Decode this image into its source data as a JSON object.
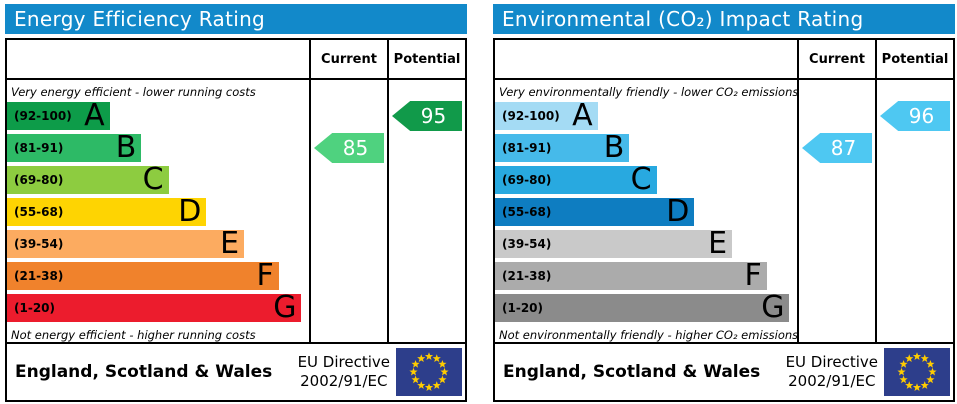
{
  "theme": {
    "header_bar_color": "#1289ca",
    "border_color": "#000000",
    "eu_flag": {
      "background": "#2d3e8b",
      "star_color": "#ffcc00"
    }
  },
  "charts": [
    {
      "title": "Energy Efficiency Rating",
      "columns": {
        "current": "Current",
        "potential": "Potential"
      },
      "caption_top": "Very energy efficient - lower running costs",
      "caption_bottom": "Not energy efficient - higher running costs",
      "bands": [
        {
          "range": "(92-100)",
          "letter": "A",
          "color": "#0d9c49",
          "width_pct": 34
        },
        {
          "range": "(81-91)",
          "letter": "B",
          "color": "#2dba66",
          "width_pct": 44.5
        },
        {
          "range": "(69-80)",
          "letter": "C",
          "color": "#8dcc40",
          "width_pct": 53.5
        },
        {
          "range": "(55-68)",
          "letter": "D",
          "color": "#fed402",
          "width_pct": 66
        },
        {
          "range": "(39-54)",
          "letter": "E",
          "color": "#fcab60",
          "width_pct": 78.5
        },
        {
          "range": "(21-38)",
          "letter": "F",
          "color": "#f0822c",
          "width_pct": 90
        },
        {
          "range": "(1-20)",
          "letter": "G",
          "color": "#ec1c2d",
          "width_pct": 97.5
        }
      ],
      "current": {
        "value": "85",
        "band": "B",
        "band_index": 1,
        "color": "#4fd27f"
      },
      "potential": {
        "value": "95",
        "band": "A",
        "band_index": 0,
        "color": "#119a4a"
      },
      "footer": {
        "region": "England, Scotland & Wales",
        "directive_line1": "EU Directive",
        "directive_line2": "2002/91/EC"
      }
    },
    {
      "title": "Environmental (CO₂) Impact Rating",
      "columns": {
        "current": "Current",
        "potential": "Potential"
      },
      "caption_top": "Very environmentally friendly - lower CO₂ emissions",
      "caption_bottom": "Not environmentally friendly - higher CO₂ emissions",
      "bands": [
        {
          "range": "(92-100)",
          "letter": "A",
          "color": "#a4dbf4",
          "width_pct": 34
        },
        {
          "range": "(81-91)",
          "letter": "B",
          "color": "#46baea",
          "width_pct": 44.5
        },
        {
          "range": "(69-80)",
          "letter": "C",
          "color": "#28a9e0",
          "width_pct": 53.5
        },
        {
          "range": "(55-68)",
          "letter": "D",
          "color": "#0e7dc1",
          "width_pct": 66
        },
        {
          "range": "(39-54)",
          "letter": "E",
          "color": "#c9c9c9",
          "width_pct": 78.5
        },
        {
          "range": "(21-38)",
          "letter": "F",
          "color": "#ababab",
          "width_pct": 90
        },
        {
          "range": "(1-20)",
          "letter": "G",
          "color": "#8b8b8b",
          "width_pct": 97.5
        }
      ],
      "current": {
        "value": "87",
        "band": "B",
        "band_index": 1,
        "color": "#4ec8f2"
      },
      "potential": {
        "value": "96",
        "band": "A",
        "band_index": 0,
        "color": "#4ec8f2"
      },
      "footer": {
        "region": "England, Scotland & Wales",
        "directive_line1": "EU Directive",
        "directive_line2": "2002/91/EC"
      }
    }
  ],
  "chart_data": [
    {
      "type": "bar",
      "subtype": "epc-rating-ladder",
      "orientation": "horizontal",
      "title": "Energy Efficiency Rating",
      "categories": [
        "A",
        "B",
        "C",
        "D",
        "E",
        "F",
        "G"
      ],
      "band_ranges": [
        "92-100",
        "81-91",
        "69-80",
        "55-68",
        "39-54",
        "21-38",
        "1-20"
      ],
      "band_colors": [
        "#0d9c49",
        "#2dba66",
        "#8dcc40",
        "#fed402",
        "#fcab60",
        "#f0822c",
        "#ec1c2d"
      ],
      "band_bar_lengths_pct": [
        34,
        44.5,
        53.5,
        66,
        78.5,
        90,
        97.5
      ],
      "scale": [
        1,
        100
      ],
      "series": [
        {
          "name": "Current",
          "values": [
            85
          ],
          "band": "B"
        },
        {
          "name": "Potential",
          "values": [
            95
          ],
          "band": "A"
        }
      ],
      "annotations": [
        "Very energy efficient - lower running costs",
        "Not energy efficient - higher running costs"
      ],
      "footer": [
        "England, Scotland & Wales",
        "EU Directive 2002/91/EC"
      ]
    },
    {
      "type": "bar",
      "subtype": "epc-rating-ladder",
      "orientation": "horizontal",
      "title": "Environmental (CO₂) Impact Rating",
      "categories": [
        "A",
        "B",
        "C",
        "D",
        "E",
        "F",
        "G"
      ],
      "band_ranges": [
        "92-100",
        "81-91",
        "69-80",
        "55-68",
        "39-54",
        "21-38",
        "1-20"
      ],
      "band_colors": [
        "#a4dbf4",
        "#46baea",
        "#28a9e0",
        "#0e7dc1",
        "#c9c9c9",
        "#ababab",
        "#8b8b8b"
      ],
      "band_bar_lengths_pct": [
        34,
        44.5,
        53.5,
        66,
        78.5,
        90,
        97.5
      ],
      "scale": [
        1,
        100
      ],
      "series": [
        {
          "name": "Current",
          "values": [
            87
          ],
          "band": "B"
        },
        {
          "name": "Potential",
          "values": [
            96
          ],
          "band": "A"
        }
      ],
      "annotations": [
        "Very environmentally friendly - lower CO₂ emissions",
        "Not environmentally friendly - higher CO₂ emissions"
      ],
      "footer": [
        "England, Scotland & Wales",
        "EU Directive 2002/91/EC"
      ]
    }
  ]
}
